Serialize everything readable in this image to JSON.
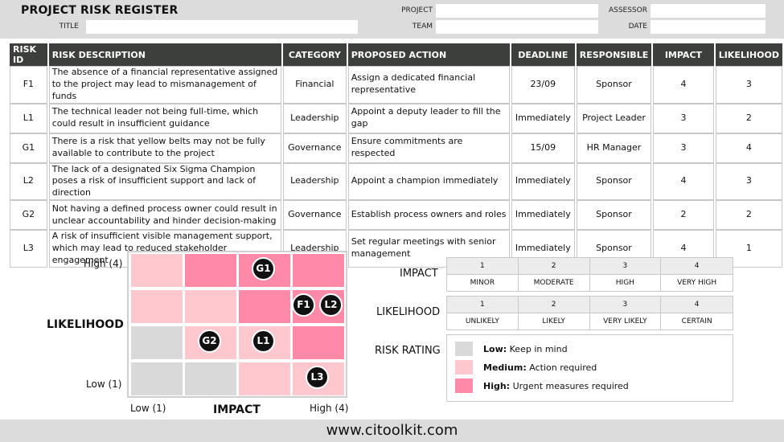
{
  "header": {
    "title": "PROJECT RISK REGISTER",
    "labels": {
      "project": "PROJECT",
      "assessor": "ASSESSOR",
      "title": "TITLE",
      "team": "TEAM",
      "date": "DATE"
    }
  },
  "table": {
    "columns": [
      "RISK ID",
      "RISK DESCRIPTION",
      "CATEGORY",
      "PROPOSED ACTION",
      "DEADLINE",
      "RESPONSIBLE",
      "IMPACT",
      "LIKELIHOOD"
    ],
    "rows": [
      {
        "id": "F1",
        "desc": "The absence of a financial representative assigned to the project may lead to mismanagement of funds",
        "category": "Financial",
        "action": "Assign a dedicated financial representative",
        "deadline": "23/09",
        "responsible": "Sponsor",
        "impact": "4",
        "likelihood": "3"
      },
      {
        "id": "L1",
        "desc": "The technical leader not being full-time, which could result in insufficient guidance",
        "category": "Leadership",
        "action": "Appoint a deputy leader to fill the gap",
        "deadline": "Immediately",
        "responsible": "Project Leader",
        "impact": "3",
        "likelihood": "2"
      },
      {
        "id": "G1",
        "desc": "There is a risk that yellow belts may not be fully available to contribute to the project",
        "category": "Governance",
        "action": "Ensure commitments are respected",
        "deadline": "15/09",
        "responsible": "HR Manager",
        "impact": "3",
        "likelihood": "4"
      },
      {
        "id": "L2",
        "desc": "The lack of a designated Six Sigma Champion poses a risk of insufficient support and lack of direction",
        "category": "Leadership",
        "action": "Appoint a champion immediately",
        "deadline": "Immediately",
        "responsible": "Sponsor",
        "impact": "4",
        "likelihood": "3"
      },
      {
        "id": "G2",
        "desc": "Not having a defined process owner could result in unclear accountability and hinder decision-making",
        "category": "Governance",
        "action": "Establish process owners and roles",
        "deadline": "Immediately",
        "responsible": "Sponsor",
        "impact": "2",
        "likelihood": "2"
      },
      {
        "id": "L3",
        "desc": "A risk of insufficient visible management support, which may lead to reduced stakeholder engagement",
        "category": "Leadership",
        "action": "Set regular meetings with senior management",
        "deadline": "Immediately",
        "responsible": "Sponsor",
        "impact": "4",
        "likelihood": "1"
      }
    ]
  },
  "matrix": {
    "y_axis_label": "LIKELIHOOD",
    "x_axis_label": "IMPACT",
    "y_high": "High (4)",
    "y_low": "Low (1)",
    "x_low": "Low (1)",
    "x_high": "High (4)",
    "colors": {
      "low": "#d9d9d9",
      "medium": "#ffc7ce",
      "high": "#ff8aa8"
    },
    "grid_rows_top_to_bottom": [
      [
        "medium",
        "high",
        "high",
        "high"
      ],
      [
        "medium",
        "medium",
        "high",
        "high"
      ],
      [
        "low",
        "medium",
        "medium",
        "high"
      ],
      [
        "low",
        "low",
        "medium",
        "medium"
      ]
    ],
    "points": [
      {
        "label": "G1",
        "impact": 3,
        "likelihood": 4
      },
      {
        "label": "F1",
        "impact": 4,
        "likelihood": 3
      },
      {
        "label": "L2",
        "impact": 4,
        "likelihood": 3
      },
      {
        "label": "G2",
        "impact": 2,
        "likelihood": 2
      },
      {
        "label": "L1",
        "impact": 3,
        "likelihood": 2
      },
      {
        "label": "L3",
        "impact": 4,
        "likelihood": 1
      }
    ]
  },
  "legend": {
    "impact": {
      "title": "IMPACT",
      "nums": [
        "1",
        "2",
        "3",
        "4"
      ],
      "labels": [
        "MINOR",
        "MODERATE",
        "HIGH",
        "VERY HIGH"
      ]
    },
    "likelihood": {
      "title": "LIKELIHOOD",
      "nums": [
        "1",
        "2",
        "3",
        "4"
      ],
      "labels": [
        "UNLIKELY",
        "LIKELY",
        "VERY LIKELY",
        "CERTAIN"
      ]
    },
    "rating": {
      "title": "RISK RATING",
      "items": [
        {
          "level": "Low:",
          "text": " Keep in mind",
          "color": "#d9d9d9"
        },
        {
          "level": "Medium:",
          "text": " Action required",
          "color": "#ffc7ce"
        },
        {
          "level": "High:",
          "text": " Urgent measures required",
          "color": "#ff8aa8"
        }
      ]
    }
  },
  "footer": {
    "text": "www.citoolkit.com"
  }
}
